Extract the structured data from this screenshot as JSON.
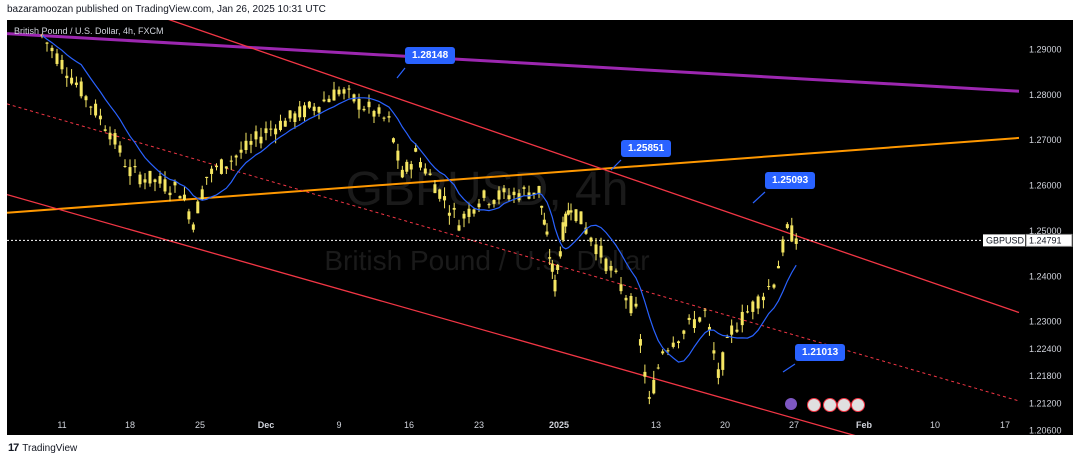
{
  "header": {
    "text": "bazaramoozan published on TradingView.com, Jan 26, 2025 10:31 UTC"
  },
  "footer": {
    "brand": "TradingView",
    "logo_mark": "17"
  },
  "symbol_title": "British Pound / U.S. Dollar, 4h, FXCM",
  "watermark": {
    "line1": "GBPUSD, 4h",
    "line2": "British Pound / U.S. Dollar"
  },
  "current_price": {
    "symbol": "GBPUSD",
    "value": "1.24791"
  },
  "callouts": [
    {
      "label": "1.28148"
    },
    {
      "label": "1.25851"
    },
    {
      "label": "1.25093"
    },
    {
      "label": "1.21013"
    }
  ],
  "colors": {
    "background": "#000000",
    "candle": "#f5e663",
    "ma": "#2962ff",
    "channel": "#f23645",
    "purple_line": "#9c27b0",
    "orange_line": "#ff9800",
    "callout": "#2962ff",
    "axis_text": "#d1d4dc"
  },
  "chart_data": {
    "type": "candlestick",
    "title": "British Pound / U.S. Dollar, 4h, FXCM",
    "y_ticks": [
      "1.29000",
      "1.28000",
      "1.27000",
      "1.26000",
      "1.25000",
      "1.24000",
      "1.23000",
      "1.22400",
      "1.21800",
      "1.21200",
      "1.20600"
    ],
    "x_ticks": [
      "11",
      "18",
      "25",
      "Dec",
      "9",
      "16",
      "23",
      "2025",
      "13",
      "20",
      "27",
      "Feb",
      "10",
      "17"
    ],
    "ylim": [
      1.205,
      1.2965
    ],
    "price_path": [
      [
        "11",
        1.293
      ],
      [
        "11",
        1.287
      ],
      [
        "18",
        1.272
      ],
      [
        "18",
        1.263
      ],
      [
        "25",
        1.259
      ],
      [
        "25",
        1.252
      ],
      [
        "25",
        1.262
      ],
      [
        "Dec",
        1.268
      ],
      [
        "Dec",
        1.272
      ],
      [
        "9",
        1.278
      ],
      [
        "9",
        1.281
      ],
      [
        "16",
        1.274
      ],
      [
        "16",
        1.262
      ],
      [
        "16",
        1.267
      ],
      [
        "23",
        1.252
      ],
      [
        "23",
        1.257
      ],
      [
        "2025",
        1.259
      ],
      [
        "2025",
        1.248
      ],
      [
        "2025",
        1.238
      ],
      [
        "2025",
        1.25
      ],
      [
        "2025",
        1.256
      ],
      [
        "13",
        1.232
      ],
      [
        "13",
        1.212
      ],
      [
        "13",
        1.224
      ],
      [
        "20",
        1.232
      ],
      [
        "20",
        1.218
      ],
      [
        "20",
        1.228
      ],
      [
        "27",
        1.239
      ],
      [
        "27",
        1.25
      ],
      [
        "27",
        1.248
      ]
    ],
    "current_price": 1.24791,
    "annotations": [
      1.28148,
      1.25851,
      1.25093,
      1.21013
    ]
  }
}
